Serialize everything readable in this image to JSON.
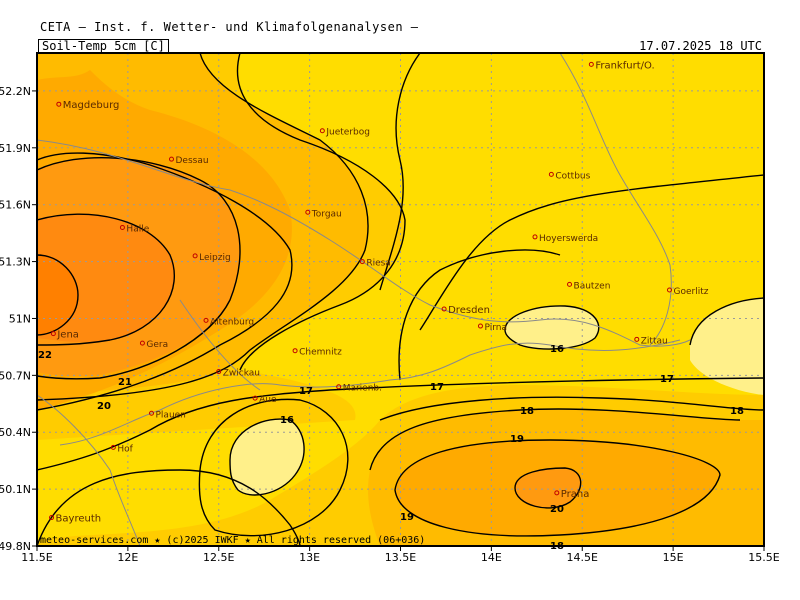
{
  "header": {
    "title": "CETA — Inst. f. Wetter- und Klimafolgenanalysen —",
    "parameter": "Soil-Temp_5cm [C]",
    "valid_time": "17.07.2025 18 UTC"
  },
  "axes": {
    "lat_ticks": [
      "52.2N",
      "51.9N",
      "51.6N",
      "51.3N",
      "51N",
      "50.7N",
      "50.4N",
      "50.1N",
      "49.8N"
    ],
    "lon_ticks": [
      "11.5E",
      "12E",
      "12.5E",
      "13E",
      "13.5E",
      "14E",
      "14.5E",
      "15E",
      "15.5E"
    ]
  },
  "cities": [
    {
      "name": "Magdeburg",
      "lon": 11.62,
      "lat": 52.13
    },
    {
      "name": "Jueterbog",
      "lon": 13.07,
      "lat": 51.99
    },
    {
      "name": "Frankfurt/O.",
      "lon": 14.55,
      "lat": 52.34
    },
    {
      "name": "Dessau",
      "lon": 12.24,
      "lat": 51.84
    },
    {
      "name": "Cottbus",
      "lon": 14.33,
      "lat": 51.76
    },
    {
      "name": "Torgau",
      "lon": 12.99,
      "lat": 51.56
    },
    {
      "name": "Halle",
      "lon": 11.97,
      "lat": 51.48
    },
    {
      "name": "Hoyerswerda",
      "lon": 14.24,
      "lat": 51.43
    },
    {
      "name": "Leipzig",
      "lon": 12.37,
      "lat": 51.33
    },
    {
      "name": "Riesa",
      "lon": 13.29,
      "lat": 51.3
    },
    {
      "name": "Bautzen",
      "lon": 14.43,
      "lat": 51.18
    },
    {
      "name": "Goerlitz",
      "lon": 14.98,
      "lat": 51.15
    },
    {
      "name": "Dresden",
      "lon": 13.74,
      "lat": 51.05
    },
    {
      "name": "Pirna",
      "lon": 13.94,
      "lat": 50.96
    },
    {
      "name": "Altenburg",
      "lon": 12.43,
      "lat": 50.99
    },
    {
      "name": "Zittau",
      "lon": 14.8,
      "lat": 50.89
    },
    {
      "name": "Jena",
      "lon": 11.59,
      "lat": 50.92
    },
    {
      "name": "Gera",
      "lon": 12.08,
      "lat": 50.87
    },
    {
      "name": "Chemnitz",
      "lon": 12.92,
      "lat": 50.83
    },
    {
      "name": "Zwickau",
      "lon": 12.5,
      "lat": 50.72
    },
    {
      "name": "Marienb.",
      "lon": 13.16,
      "lat": 50.64
    },
    {
      "name": "Aue",
      "lon": 12.7,
      "lat": 50.58
    },
    {
      "name": "Plauen",
      "lon": 12.13,
      "lat": 50.5
    },
    {
      "name": "Hof",
      "lon": 11.92,
      "lat": 50.32
    },
    {
      "name": "Praha",
      "lon": 14.36,
      "lat": 50.08
    },
    {
      "name": "Bayreuth",
      "lon": 11.58,
      "lat": 49.95
    }
  ],
  "contour_labels": [
    "22",
    "21",
    "20",
    "17",
    "16",
    "17",
    "18",
    "19",
    "20",
    "19",
    "18",
    "17",
    "18",
    "16"
  ],
  "colors": {
    "t16": "#fff08a",
    "t17": "#ffdd00",
    "t18": "#ffcc00",
    "t19": "#ffbb00",
    "t20": "#ffaa00",
    "t21": "#ff9a10",
    "t22": "#ff8a10",
    "grid": "#9a9a9a",
    "border": "#8a8a8a"
  },
  "footer": "meteo-services.com ★ (c)2025 IWKF ★ All rights reserved (06+036)"
}
